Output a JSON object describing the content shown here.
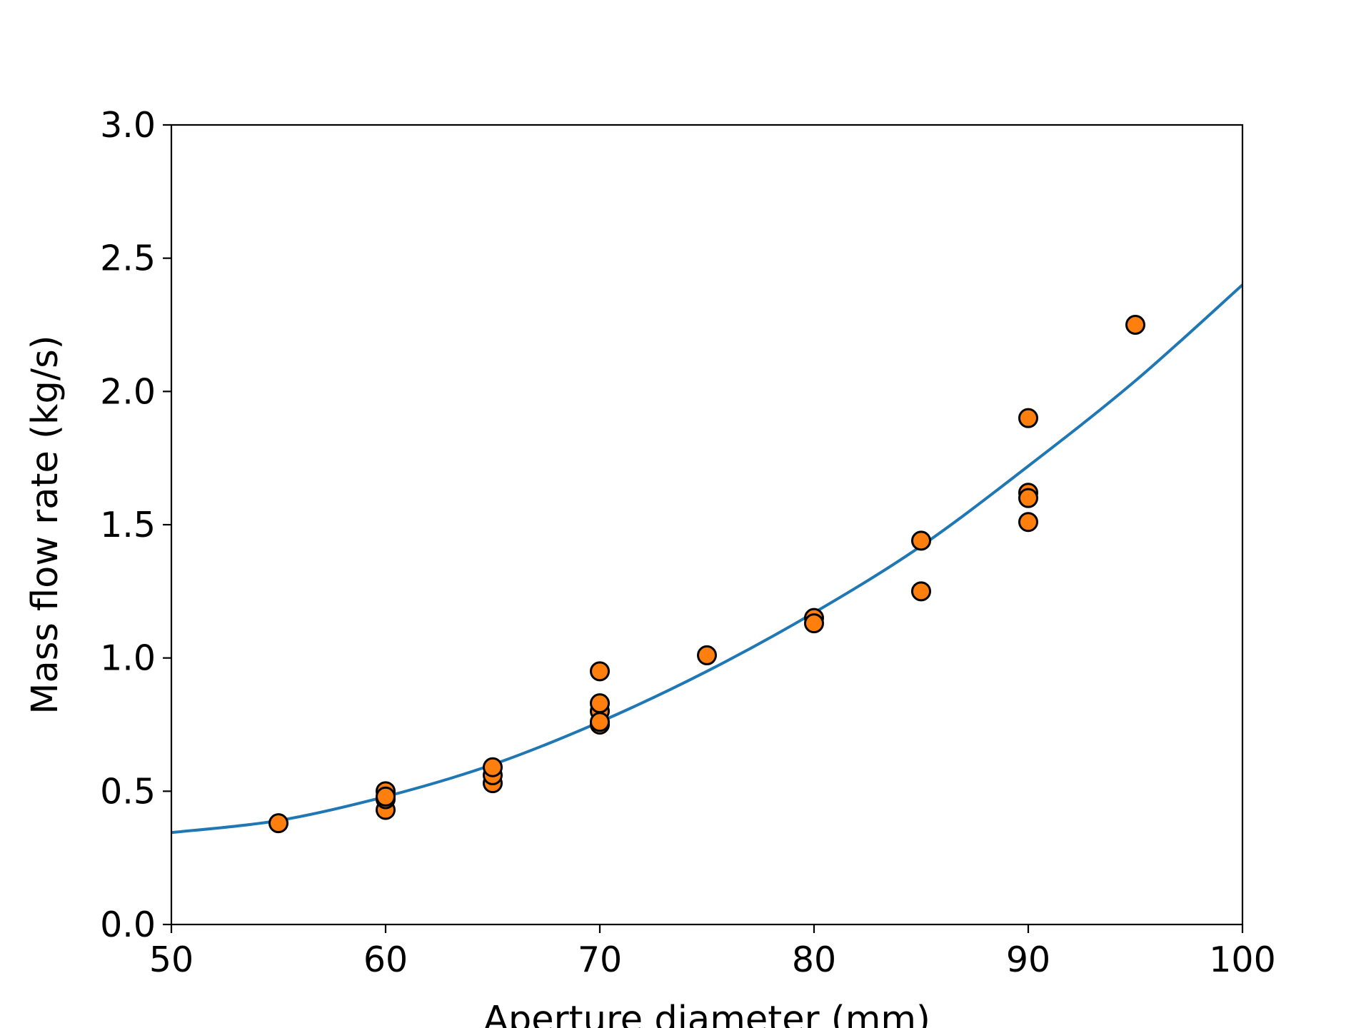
{
  "chart_data": {
    "type": "scatter",
    "xlabel": "Aperture diameter (mm)",
    "ylabel": "Mass flow rate (kg/s)",
    "xlim": [
      50,
      100
    ],
    "ylim": [
      0.0,
      3.0
    ],
    "x_ticks": [
      "50",
      "60",
      "70",
      "80",
      "90",
      "100"
    ],
    "y_ticks": [
      "0.0",
      "0.5",
      "1.0",
      "1.5",
      "2.0",
      "2.5",
      "3.0"
    ],
    "grid": false,
    "legend": "none",
    "colors": {
      "fit_line": "#1f77b4",
      "points": "#ff7f0e",
      "point_edge": "#000000"
    },
    "series": [
      {
        "kind": "points",
        "x": [
          55,
          60,
          60,
          60,
          60,
          65,
          65,
          65,
          70,
          70,
          70,
          70,
          70,
          75,
          80,
          80,
          85,
          85,
          90,
          90,
          90,
          90,
          95
        ],
        "y": [
          0.38,
          0.43,
          0.47,
          0.5,
          0.48,
          0.53,
          0.56,
          0.59,
          0.95,
          0.8,
          0.83,
          0.75,
          0.76,
          1.01,
          1.15,
          1.13,
          1.44,
          1.25,
          1.9,
          1.62,
          1.6,
          1.51,
          2.25
        ]
      },
      {
        "kind": "fit-line",
        "x": [
          50,
          55,
          60,
          65,
          70,
          75,
          80,
          85,
          90,
          95,
          100
        ],
        "y": [
          0.345,
          0.39,
          0.48,
          0.6,
          0.76,
          0.95,
          1.17,
          1.42,
          1.72,
          2.04,
          2.4
        ]
      }
    ]
  }
}
